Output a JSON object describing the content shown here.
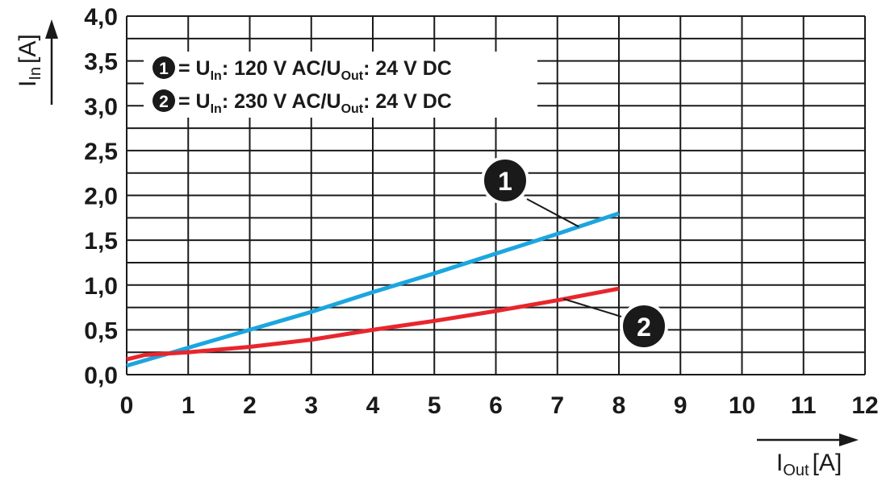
{
  "chart_data": {
    "type": "line",
    "x_axis": {
      "label_main": "I",
      "label_sub": "Out",
      "label_unit": "[A]",
      "range": [
        0,
        12
      ],
      "ticks": [
        "0",
        "1",
        "2",
        "3",
        "4",
        "5",
        "6",
        "7",
        "8",
        "9",
        "10",
        "11",
        "12"
      ]
    },
    "y_axis": {
      "label_main": "I",
      "label_sub": "In",
      "label_unit": "[A]",
      "range": [
        0,
        4
      ],
      "ticks": [
        "0,0",
        "0,5",
        "1,0",
        "1,5",
        "2,0",
        "2,5",
        "3,0",
        "3,5",
        "4,0"
      ]
    },
    "grid": true,
    "legend": [
      {
        "marker": "1",
        "eq": " = U",
        "sub1": "In",
        "mid": ": 120 V AC/U",
        "sub2": "Out",
        "tail": ": 24 V DC"
      },
      {
        "marker": "2",
        "eq": " = U",
        "sub1": "In",
        "mid": ": 230 V AC/U",
        "sub2": "Out",
        "tail": ": 24 V DC"
      }
    ],
    "series": [
      {
        "marker": "1",
        "color": "#1ba6df",
        "x": [
          0,
          1,
          2,
          3,
          4,
          5,
          6,
          7,
          8
        ],
        "y": [
          0.1,
          0.3,
          0.5,
          0.7,
          0.92,
          1.13,
          1.35,
          1.57,
          1.8
        ]
      },
      {
        "marker": "2",
        "color": "#e8262d",
        "x": [
          0,
          0.3,
          1,
          2,
          3,
          4,
          5,
          6,
          7,
          8
        ],
        "y": [
          0.17,
          0.22,
          0.25,
          0.31,
          0.39,
          0.5,
          0.6,
          0.71,
          0.83,
          0.96
        ]
      }
    ]
  }
}
